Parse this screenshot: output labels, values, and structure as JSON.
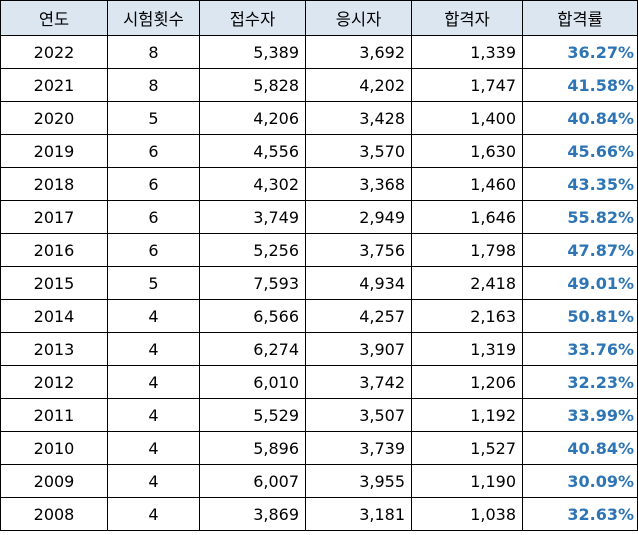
{
  "table": {
    "headers": [
      "연도",
      "시험횟수",
      "접수자",
      "응시자",
      "합격자",
      "합격률"
    ],
    "rows": [
      [
        "2022",
        "8",
        "5,389",
        "3,692",
        "1,339",
        "36.27%"
      ],
      [
        "2021",
        "8",
        "5,828",
        "4,202",
        "1,747",
        "41.58%"
      ],
      [
        "2020",
        "5",
        "4,206",
        "3,428",
        "1,400",
        "40.84%"
      ],
      [
        "2019",
        "6",
        "4,556",
        "3,570",
        "1,630",
        "45.66%"
      ],
      [
        "2018",
        "6",
        "4,302",
        "3,368",
        "1,460",
        "43.35%"
      ],
      [
        "2017",
        "6",
        "3,749",
        "2,949",
        "1,646",
        "55.82%"
      ],
      [
        "2016",
        "6",
        "5,256",
        "3,756",
        "1,798",
        "47.87%"
      ],
      [
        "2015",
        "5",
        "7,593",
        "4,934",
        "2,418",
        "49.01%"
      ],
      [
        "2014",
        "4",
        "6,566",
        "4,257",
        "2,163",
        "50.81%"
      ],
      [
        "2013",
        "4",
        "6,274",
        "3,907",
        "1,319",
        "33.76%"
      ],
      [
        "2012",
        "4",
        "6,010",
        "3,742",
        "1,206",
        "32.23%"
      ],
      [
        "2011",
        "4",
        "5,529",
        "3,507",
        "1,192",
        "33.99%"
      ],
      [
        "2010",
        "4",
        "5,896",
        "3,739",
        "1,527",
        "40.84%"
      ],
      [
        "2009",
        "4",
        "6,007",
        "3,955",
        "1,190",
        "30.09%"
      ],
      [
        "2008",
        "4",
        "3,869",
        "3,181",
        "1,038",
        "32.63%"
      ]
    ]
  },
  "colors": {
    "header_bg": "#dce6f1",
    "rate_text": "#2e75b6",
    "border": "#000000"
  }
}
